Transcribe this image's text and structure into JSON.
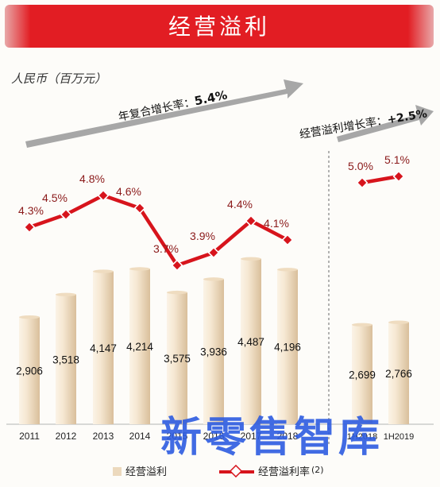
{
  "title": "经营溢利",
  "unit_label": "人民币（百万元）",
  "cagr_label": "年复合增长率：",
  "cagr_value": "5.4%",
  "growth_label": "经营溢利增长率：",
  "growth_value": "+2.5%",
  "watermark": "新零售智库",
  "legend": {
    "bar": "经营溢利",
    "line": "经营溢利率",
    "line_note": "(2)"
  },
  "colors": {
    "banner": "#e21d23",
    "line": "#d7141c",
    "bar_light": "#f8ecd9",
    "bar_dark": "#d7bc97",
    "watermark": "#2c5be0"
  },
  "chart_data": {
    "type": "bar",
    "categories": [
      "2011",
      "2012",
      "2013",
      "2014",
      "2015",
      "2016",
      "2017",
      "2018",
      "1H2018",
      "1H2019"
    ],
    "series": [
      {
        "name": "经营溢利",
        "type": "bar",
        "values": [
          2906,
          3518,
          4147,
          4214,
          3575,
          3936,
          4487,
          4196,
          2699,
          2766
        ],
        "labels": [
          "2,906",
          "3,518",
          "4,147",
          "4,214",
          "3,575",
          "3,936",
          "4,487",
          "4,196",
          "2,699",
          "2,766"
        ]
      },
      {
        "name": "经营溢利率",
        "type": "line",
        "values": [
          4.3,
          4.5,
          4.8,
          4.6,
          3.7,
          3.9,
          4.4,
          4.1,
          5.0,
          5.1
        ],
        "labels": [
          "4.3%",
          "4.5%",
          "4.8%",
          "4.6%",
          "3.7%",
          "3.9%",
          "4.4%",
          "4.1%",
          "5.0%",
          "5.1%"
        ]
      }
    ],
    "groups": [
      {
        "categories": [
          "2011",
          "2012",
          "2013",
          "2014",
          "2015",
          "2016",
          "2017",
          "2018"
        ]
      },
      {
        "categories": [
          "1H2018",
          "1H2019"
        ]
      }
    ],
    "ylabel": "人民币（百万元）",
    "grid": false
  }
}
